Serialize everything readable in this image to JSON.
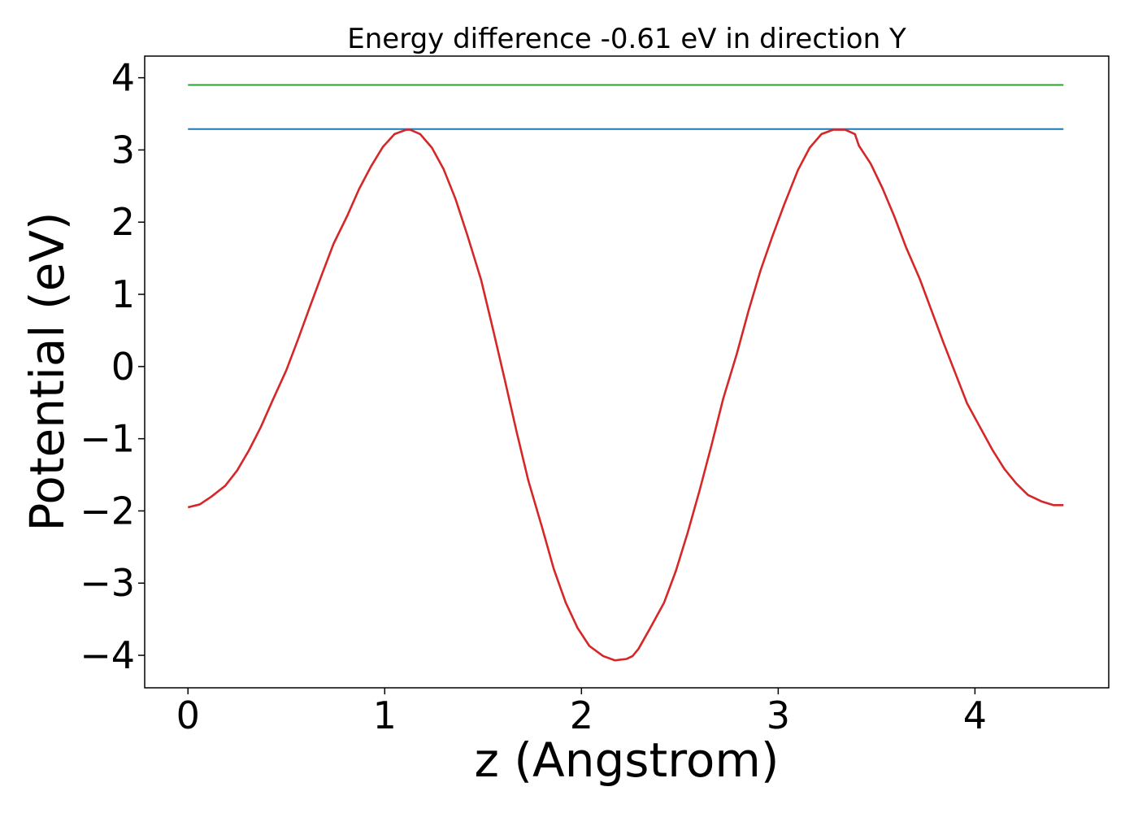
{
  "chart_data": {
    "type": "line",
    "title": "Energy difference -0.61 eV in direction Y",
    "xlabel": "z (Angstrom)",
    "ylabel": "Potential (eV)",
    "xlim": [
      -0.22,
      4.68
    ],
    "ylim": [
      -4.45,
      4.3
    ],
    "xticks": [
      0,
      1,
      2,
      3,
      4
    ],
    "xtick_labels": [
      "0",
      "1",
      "2",
      "3",
      "4"
    ],
    "yticks": [
      -4,
      -3,
      -2,
      -1,
      0,
      1,
      2,
      3,
      4
    ],
    "ytick_labels": [
      "−4",
      "−3",
      "−2",
      "−1",
      "0",
      "1",
      "2",
      "3",
      "4"
    ],
    "grid": false,
    "series": [
      {
        "color": "#2ca02c",
        "x": [
          0.0,
          4.45
        ],
        "y": [
          3.9,
          3.9
        ]
      },
      {
        "color": "#1f77b4",
        "x": [
          0.0,
          4.45
        ],
        "y": [
          3.29,
          3.29
        ]
      },
      {
        "color": "#d62728",
        "x": [
          0.0,
          0.06,
          0.12,
          0.19,
          0.25,
          0.31,
          0.37,
          0.43,
          0.5,
          0.56,
          0.62,
          0.68,
          0.74,
          0.81,
          0.87,
          0.93,
          0.99,
          1.05,
          1.11,
          1.13,
          1.18,
          1.24,
          1.3,
          1.36,
          1.42,
          1.49,
          1.55,
          1.61,
          1.67,
          1.73,
          1.8,
          1.86,
          1.92,
          1.98,
          2.04,
          2.11,
          2.17,
          2.23,
          2.26,
          2.29,
          2.35,
          2.42,
          2.48,
          2.54,
          2.6,
          2.66,
          2.72,
          2.79,
          2.85,
          2.91,
          2.97,
          3.03,
          3.1,
          3.16,
          3.22,
          3.28,
          3.34,
          3.39,
          3.41,
          3.47,
          3.53,
          3.59,
          3.65,
          3.72,
          3.78,
          3.84,
          3.9,
          3.96,
          4.03,
          4.09,
          4.15,
          4.21,
          4.27,
          4.34,
          4.4,
          4.45
        ],
        "y": [
          -1.95,
          -1.91,
          -1.8,
          -1.65,
          -1.44,
          -1.16,
          -0.84,
          -0.47,
          -0.05,
          0.38,
          0.83,
          1.27,
          1.7,
          2.09,
          2.46,
          2.77,
          3.04,
          3.22,
          3.28,
          3.28,
          3.22,
          3.03,
          2.73,
          2.32,
          1.82,
          1.2,
          0.52,
          -0.18,
          -0.9,
          -1.58,
          -2.23,
          -2.81,
          -3.27,
          -3.62,
          -3.87,
          -4.01,
          -4.07,
          -4.05,
          -4.01,
          -3.91,
          -3.62,
          -3.27,
          -2.83,
          -2.3,
          -1.72,
          -1.1,
          -0.45,
          0.18,
          0.78,
          1.33,
          1.8,
          2.24,
          2.72,
          3.03,
          3.22,
          3.28,
          3.28,
          3.22,
          3.06,
          2.81,
          2.47,
          2.08,
          1.65,
          1.21,
          0.77,
          0.33,
          -0.09,
          -0.51,
          -0.86,
          -1.16,
          -1.42,
          -1.62,
          -1.78,
          -1.87,
          -1.92,
          -1.92
        ]
      }
    ]
  }
}
